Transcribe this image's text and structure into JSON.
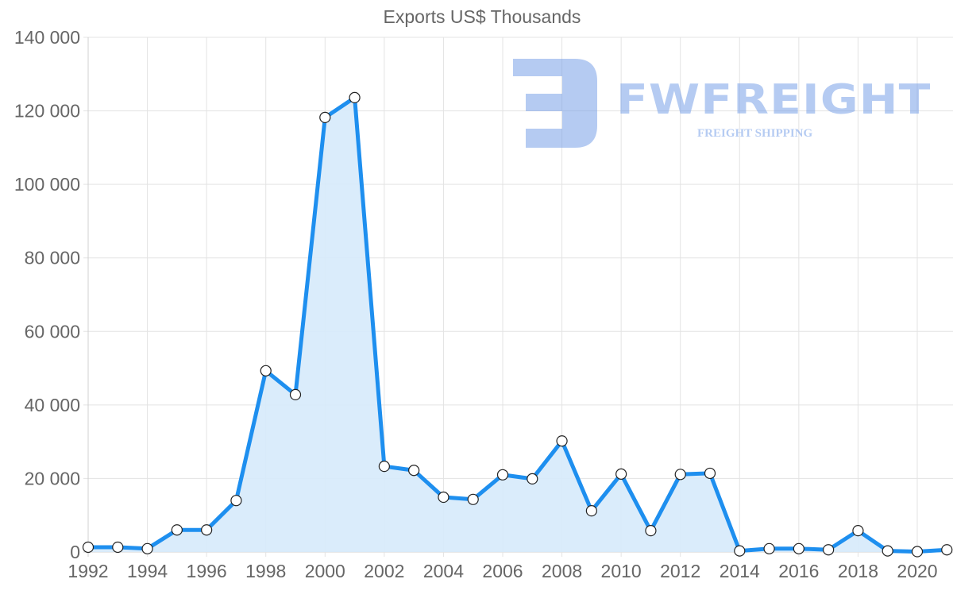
{
  "chart_data": {
    "type": "line",
    "title": "Exports US$ Thousands",
    "xlabel": "",
    "ylabel": "",
    "ylim": [
      0,
      140000
    ],
    "yticks": [
      0,
      20000,
      40000,
      60000,
      80000,
      100000,
      120000,
      140000
    ],
    "ytick_labels": [
      "0",
      "20 000",
      "40 000",
      "60 000",
      "80 000",
      "100 000",
      "120 000",
      "140 000"
    ],
    "xtick_labels": [
      "1992",
      "1994",
      "1996",
      "1998",
      "2000",
      "2002",
      "2004",
      "2006",
      "2008",
      "2010",
      "2012",
      "2014",
      "2016",
      "2018",
      "2020"
    ],
    "grid": true,
    "legend": null,
    "fill": true,
    "x": [
      1992,
      1993,
      1994,
      1995,
      1996,
      1997,
      1998,
      1999,
      2000,
      2001,
      2002,
      2003,
      2004,
      2005,
      2006,
      2007,
      2008,
      2009,
      2010,
      2011,
      2012,
      2013,
      2014,
      2015,
      2016,
      2017,
      2018,
      2019,
      2020,
      2021
    ],
    "series": [
      {
        "name": "Exports US$ Thousands",
        "values": [
          1300,
          1300,
          900,
          6000,
          6000,
          14000,
          49300,
          42800,
          118200,
          123600,
          23300,
          22200,
          14900,
          14300,
          21000,
          19900,
          30200,
          11200,
          21200,
          5800,
          21100,
          21400,
          300,
          900,
          900,
          600,
          5800,
          300,
          100,
          600
        ]
      }
    ],
    "colors": {
      "line": "#1e8fef",
      "fill": "#d6eafb",
      "marker_fill": "#ffffff",
      "marker_stroke": "#222222"
    }
  },
  "watermark": {
    "brand": "FWFREIGHT",
    "tagline": "FREIGHT SHIPPING"
  }
}
